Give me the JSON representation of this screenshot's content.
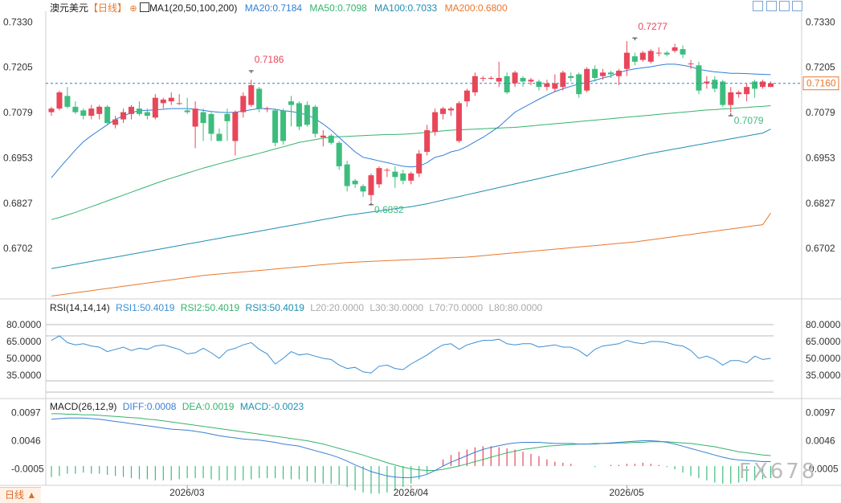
{
  "header": {
    "symbol": "澳元美元",
    "period": "【日线】",
    "period_icon": "circle-arrows-icon",
    "ma_label": "MA1(20,50,100,200)",
    "ma20": "MA20:0.7184",
    "ma50": "MA50:0.7098",
    "ma100": "MA100:0.7033",
    "ma200": "MA200:0.6800"
  },
  "rsi_header": {
    "label": "RSI(14,14,14)",
    "rsi1": "RSI1:50.4019",
    "rsi2": "RSI2:50.4019",
    "rsi3": "RSI3:50.4019",
    "l20": "L20:20.0000",
    "l30": "L30:30.0000",
    "l70": "L70:70.0000",
    "l80": "L80:80.0000"
  },
  "macd_header": {
    "label": "MACD(26,12,9)",
    "diff": "DIFF:0.0008",
    "dea": "DEA:0.0019",
    "macd": "MACD:-0.0023"
  },
  "bottom_tab": "日线 ▲",
  "watermark": "FX678",
  "colors": {
    "up": "#e8475a",
    "down": "#3dbd7d",
    "ma20": "#2f7fd8",
    "ma50": "#35b36b",
    "ma100": "#1f8fb0",
    "ma200": "#e8772e",
    "rsi": "#3a8fd4",
    "diff": "#3a7fd4",
    "dea": "#35b36b",
    "current": "#e8772e"
  },
  "chart_data": {
    "type": "candlestick",
    "dates_labels": [
      "2026/03",
      "2026/04",
      "2026/05"
    ],
    "price_axis": {
      "ticks": [
        "0.7330",
        "0.7205",
        "0.7079",
        "0.6953",
        "0.6827",
        "0.6702"
      ],
      "ylim": [
        0.6562,
        0.736
      ]
    },
    "current_price": "0.7160",
    "annotations": {
      "high1": "0.7186",
      "low1": "0.6832",
      "high2": "0.7277",
      "low2": "0.7079"
    },
    "candles": [
      [
        0.708,
        0.709,
        0.707,
        0.7095
      ],
      [
        0.709,
        0.7135,
        0.7085,
        0.714
      ],
      [
        0.7125,
        0.7095,
        0.709,
        0.715
      ],
      [
        0.7095,
        0.708,
        0.7075,
        0.711
      ],
      [
        0.7085,
        0.707,
        0.706,
        0.709
      ],
      [
        0.707,
        0.709,
        0.706,
        0.71
      ],
      [
        0.7075,
        0.7095,
        0.706,
        0.71
      ],
      [
        0.7095,
        0.705,
        0.7045,
        0.71
      ],
      [
        0.7045,
        0.706,
        0.7035,
        0.707
      ],
      [
        0.706,
        0.708,
        0.705,
        0.709
      ],
      [
        0.7075,
        0.7095,
        0.706,
        0.71
      ],
      [
        0.709,
        0.7075,
        0.707,
        0.711
      ],
      [
        0.708,
        0.707,
        0.706,
        0.709
      ],
      [
        0.7065,
        0.712,
        0.706,
        0.713
      ],
      [
        0.7105,
        0.7115,
        0.709,
        0.712
      ],
      [
        0.711,
        0.712,
        0.71,
        0.7135
      ],
      [
        0.7105,
        0.7105,
        0.71,
        0.713
      ],
      [
        0.7085,
        0.708,
        0.7075,
        0.712
      ],
      [
        0.704,
        0.709,
        0.698,
        0.711
      ],
      [
        0.708,
        0.705,
        0.7,
        0.709
      ],
      [
        0.7075,
        0.702,
        0.7,
        0.708
      ],
      [
        0.702,
        0.7,
        0.7,
        0.7035
      ],
      [
        0.7075,
        0.7055,
        0.7,
        0.709
      ],
      [
        0.7,
        0.708,
        0.696,
        0.7085
      ],
      [
        0.708,
        0.7125,
        0.7065,
        0.7135
      ],
      [
        0.71,
        0.7155,
        0.7095,
        0.717
      ],
      [
        0.7145,
        0.709,
        0.708,
        0.715
      ],
      [
        0.709,
        0.709,
        0.708,
        0.7095
      ],
      [
        0.7085,
        0.6995,
        0.6985,
        0.709
      ],
      [
        0.7085,
        0.7,
        0.699,
        0.709
      ],
      [
        0.711,
        0.71,
        0.704,
        0.7125
      ],
      [
        0.7105,
        0.704,
        0.703,
        0.711
      ],
      [
        0.71,
        0.7045,
        0.704,
        0.711
      ],
      [
        0.7095,
        0.702,
        0.701,
        0.71
      ],
      [
        0.701,
        0.7015,
        0.6985,
        0.703
      ],
      [
        0.7015,
        0.6995,
        0.699,
        0.702
      ],
      [
        0.6995,
        0.693,
        0.692,
        0.7
      ],
      [
        0.6935,
        0.6875,
        0.686,
        0.6945
      ],
      [
        0.689,
        0.688,
        0.687,
        0.6895
      ],
      [
        0.6875,
        0.686,
        0.6845,
        0.688
      ],
      [
        0.685,
        0.6905,
        0.6832,
        0.691
      ],
      [
        0.688,
        0.6925,
        0.687,
        0.693
      ],
      [
        0.692,
        0.692,
        0.69,
        0.6925
      ],
      [
        0.6915,
        0.69,
        0.687,
        0.693
      ],
      [
        0.691,
        0.689,
        0.688,
        0.692
      ],
      [
        0.689,
        0.691,
        0.688,
        0.6915
      ],
      [
        0.691,
        0.6965,
        0.69,
        0.6975
      ],
      [
        0.697,
        0.703,
        0.696,
        0.7045
      ],
      [
        0.7025,
        0.708,
        0.7015,
        0.709
      ],
      [
        0.7075,
        0.709,
        0.706,
        0.7095
      ],
      [
        0.7085,
        0.709,
        0.707,
        0.7095
      ],
      [
        0.7,
        0.7105,
        0.6995,
        0.711
      ],
      [
        0.711,
        0.714,
        0.7095,
        0.7145
      ],
      [
        0.7135,
        0.718,
        0.7125,
        0.719
      ],
      [
        0.7175,
        0.7175,
        0.7165,
        0.718
      ],
      [
        0.7175,
        0.7175,
        0.717,
        0.718
      ],
      [
        0.7165,
        0.7175,
        0.715,
        0.722
      ],
      [
        0.718,
        0.7135,
        0.713,
        0.719
      ],
      [
        0.716,
        0.719,
        0.715,
        0.7195
      ],
      [
        0.7175,
        0.7165,
        0.715,
        0.718
      ],
      [
        0.7165,
        0.717,
        0.7155,
        0.7175
      ],
      [
        0.7165,
        0.715,
        0.714,
        0.717
      ],
      [
        0.715,
        0.716,
        0.714,
        0.717
      ],
      [
        0.7145,
        0.716,
        0.7135,
        0.7185
      ],
      [
        0.715,
        0.719,
        0.714,
        0.7195
      ],
      [
        0.718,
        0.7175,
        0.7165,
        0.719
      ],
      [
        0.7185,
        0.713,
        0.712,
        0.719
      ],
      [
        0.714,
        0.72,
        0.7135,
        0.7205
      ],
      [
        0.72,
        0.7175,
        0.7165,
        0.721
      ],
      [
        0.718,
        0.719,
        0.717,
        0.72
      ],
      [
        0.719,
        0.7185,
        0.7175,
        0.7195
      ],
      [
        0.718,
        0.7195,
        0.7155,
        0.72
      ],
      [
        0.72,
        0.7245,
        0.718,
        0.7277
      ],
      [
        0.7235,
        0.722,
        0.721,
        0.7245
      ],
      [
        0.7225,
        0.7245,
        0.722,
        0.725
      ],
      [
        0.722,
        0.725,
        0.7215,
        0.7255
      ],
      [
        0.7245,
        0.7245,
        0.7235,
        0.726
      ],
      [
        0.7245,
        0.724,
        0.7235,
        0.725
      ],
      [
        0.725,
        0.726,
        0.7245,
        0.727
      ],
      [
        0.7255,
        0.724,
        0.723,
        0.7265
      ],
      [
        0.7215,
        0.7215,
        0.72,
        0.7225
      ],
      [
        0.721,
        0.714,
        0.713,
        0.722
      ],
      [
        0.716,
        0.7165,
        0.7145,
        0.718
      ],
      [
        0.717,
        0.7145,
        0.7135,
        0.718
      ],
      [
        0.7165,
        0.71,
        0.7095,
        0.717
      ],
      [
        0.71,
        0.7135,
        0.7079,
        0.715
      ],
      [
        0.713,
        0.7135,
        0.712,
        0.714
      ],
      [
        0.713,
        0.715,
        0.711,
        0.716
      ],
      [
        0.7165,
        0.7145,
        0.712,
        0.717
      ],
      [
        0.715,
        0.7165,
        0.7145,
        0.717
      ],
      [
        0.715,
        0.716,
        0.715,
        0.7165
      ]
    ],
    "ma20": [
      0.6898,
      0.6925,
      0.695,
      0.6975,
      0.6998,
      0.7015,
      0.703,
      0.7045,
      0.706,
      0.707,
      0.7078,
      0.7085,
      0.7085,
      0.7087,
      0.7088,
      0.709,
      0.709,
      0.709,
      0.7088,
      0.7085,
      0.7082,
      0.708,
      0.7079,
      0.708,
      0.7083,
      0.7087,
      0.709,
      0.709,
      0.7088,
      0.7084,
      0.7082,
      0.7078,
      0.7072,
      0.7062,
      0.7047,
      0.703,
      0.701,
      0.699,
      0.697,
      0.6955,
      0.695,
      0.6945,
      0.694,
      0.6935,
      0.693,
      0.6928,
      0.693,
      0.694,
      0.6955,
      0.696,
      0.697,
      0.6975,
      0.6985,
      0.6998,
      0.701,
      0.7025,
      0.704,
      0.706,
      0.708,
      0.7092,
      0.7104,
      0.7116,
      0.7127,
      0.7137,
      0.7145,
      0.7152,
      0.7158,
      0.7163,
      0.7168,
      0.7175,
      0.718,
      0.719,
      0.7196,
      0.72,
      0.7203,
      0.7206,
      0.721,
      0.7213,
      0.7213,
      0.721,
      0.7206,
      0.7199,
      0.7195,
      0.7192,
      0.719,
      0.7188,
      0.7188,
      0.7187,
      0.7186,
      0.7185,
      0.7184
    ],
    "ma50": [
      0.6782,
      0.6788,
      0.6795,
      0.6802,
      0.681,
      0.6818,
      0.6826,
      0.6834,
      0.6842,
      0.685,
      0.6858,
      0.6866,
      0.6874,
      0.6882,
      0.689,
      0.6897,
      0.6904,
      0.6911,
      0.6918,
      0.6925,
      0.6931,
      0.6937,
      0.6943,
      0.6949,
      0.6955,
      0.696,
      0.6966,
      0.6972,
      0.6978,
      0.6984,
      0.699,
      0.6996,
      0.7,
      0.7004,
      0.7008,
      0.701,
      0.7012,
      0.7013,
      0.7014,
      0.7015,
      0.7016,
      0.7017,
      0.7018,
      0.7018,
      0.7019,
      0.702,
      0.7022,
      0.7024,
      0.7026,
      0.7028,
      0.703,
      0.7031,
      0.7032,
      0.7033,
      0.7034,
      0.7035,
      0.7036,
      0.7037,
      0.7038,
      0.704,
      0.7042,
      0.7044,
      0.7046,
      0.7048,
      0.705,
      0.7052,
      0.7054,
      0.7056,
      0.7058,
      0.706,
      0.7062,
      0.7064,
      0.7066,
      0.7068,
      0.707,
      0.7072,
      0.7074,
      0.7076,
      0.7078,
      0.708,
      0.7082,
      0.7084,
      0.7086,
      0.7087,
      0.7089,
      0.709,
      0.7092,
      0.7093,
      0.7095,
      0.7096,
      0.7098
    ],
    "ma100": [
      0.6646,
      0.665,
      0.6654,
      0.6658,
      0.6662,
      0.6666,
      0.667,
      0.6674,
      0.6678,
      0.6682,
      0.6686,
      0.669,
      0.6694,
      0.6698,
      0.6702,
      0.6706,
      0.671,
      0.6714,
      0.6718,
      0.6722,
      0.6726,
      0.673,
      0.6734,
      0.6738,
      0.6742,
      0.6746,
      0.675,
      0.6754,
      0.6758,
      0.6762,
      0.6766,
      0.677,
      0.6774,
      0.6778,
      0.6782,
      0.6786,
      0.679,
      0.6794,
      0.6797,
      0.68,
      0.6803,
      0.6806,
      0.6809,
      0.6812,
      0.6815,
      0.6818,
      0.6822,
      0.6826,
      0.6831,
      0.6836,
      0.6841,
      0.6846,
      0.6851,
      0.6856,
      0.6861,
      0.6866,
      0.6871,
      0.6876,
      0.6881,
      0.6886,
      0.6891,
      0.6896,
      0.6901,
      0.6906,
      0.6911,
      0.6916,
      0.6921,
      0.6926,
      0.6931,
      0.6936,
      0.6941,
      0.6946,
      0.6951,
      0.6956,
      0.6961,
      0.6966,
      0.697,
      0.6974,
      0.6978,
      0.6982,
      0.6986,
      0.699,
      0.6994,
      0.6998,
      0.7002,
      0.7006,
      0.701,
      0.7014,
      0.7018,
      0.7022,
      0.7033
    ],
    "ma200": [
      0.657,
      0.6573,
      0.6576,
      0.6579,
      0.6582,
      0.6585,
      0.6588,
      0.6591,
      0.6594,
      0.6597,
      0.66,
      0.6603,
      0.6606,
      0.6609,
      0.6612,
      0.6615,
      0.6618,
      0.6621,
      0.6624,
      0.6627,
      0.6629,
      0.6631,
      0.6633,
      0.6635,
      0.6637,
      0.6639,
      0.6641,
      0.6643,
      0.6645,
      0.6647,
      0.6649,
      0.6651,
      0.6653,
      0.6655,
      0.6657,
      0.6659,
      0.6661,
      0.6663,
      0.6664,
      0.6665,
      0.6666,
      0.6667,
      0.6668,
      0.6669,
      0.667,
      0.6671,
      0.6672,
      0.6673,
      0.6674,
      0.6675,
      0.6676,
      0.6677,
      0.6678,
      0.668,
      0.6682,
      0.6684,
      0.6686,
      0.6688,
      0.669,
      0.6692,
      0.6694,
      0.6696,
      0.6698,
      0.67,
      0.6702,
      0.6704,
      0.6706,
      0.6708,
      0.671,
      0.6712,
      0.6714,
      0.6716,
      0.6718,
      0.672,
      0.6723,
      0.6726,
      0.6729,
      0.6732,
      0.6735,
      0.6738,
      0.6741,
      0.6744,
      0.6747,
      0.675,
      0.6753,
      0.6756,
      0.6759,
      0.6762,
      0.6765,
      0.6768,
      0.68
    ],
    "rsi": {
      "ylim": [
        20,
        90
      ],
      "ticks": [
        "80.0000",
        "65.0000",
        "50.0000",
        "35.0000"
      ],
      "levels": [
        20,
        30,
        70,
        80
      ],
      "values": [
        66,
        70,
        64,
        62,
        63,
        61,
        60,
        56,
        58,
        60,
        57,
        59,
        58,
        61,
        62,
        60,
        58,
        54,
        55,
        59,
        55,
        50,
        57,
        59,
        62,
        64,
        58,
        54,
        45,
        50,
        56,
        53,
        54,
        52,
        50,
        49,
        44,
        41,
        42,
        38,
        37,
        43,
        44,
        41,
        40,
        45,
        49,
        53,
        58,
        62,
        63,
        58,
        62,
        64,
        66,
        66,
        67,
        63,
        62,
        63,
        63,
        60,
        61,
        62,
        60,
        60,
        57,
        52,
        58,
        61,
        62,
        63,
        66,
        64,
        63,
        65,
        65,
        64,
        62,
        61,
        57,
        50,
        52,
        49,
        44,
        48,
        48,
        46,
        52,
        49,
        50
      ]
    },
    "macd": {
      "ylim": [
        -0.0035,
        0.0105
      ],
      "ticks": [
        "0.0097",
        "0.0046",
        "-0.0005"
      ],
      "diff": [
        0.0085,
        0.0086,
        0.0087,
        0.0087,
        0.0087,
        0.0086,
        0.0085,
        0.0083,
        0.0081,
        0.0079,
        0.0077,
        0.0075,
        0.0073,
        0.0071,
        0.0069,
        0.0067,
        0.0066,
        0.0065,
        0.0063,
        0.0061,
        0.0058,
        0.0055,
        0.0053,
        0.0051,
        0.0049,
        0.0048,
        0.0047,
        0.0045,
        0.0043,
        0.004,
        0.0038,
        0.0036,
        0.0032,
        0.0028,
        0.0024,
        0.002,
        0.0015,
        0.0009,
        0.0002,
        -0.0004,
        -0.001,
        -0.0014,
        -0.0018,
        -0.002,
        -0.0021,
        -0.0021,
        -0.0019,
        -0.0015,
        -0.0008,
        0.0,
        0.0007,
        0.0013,
        0.0019,
        0.0025,
        0.003,
        0.0034,
        0.0037,
        0.004,
        0.0042,
        0.0043,
        0.0043,
        0.0043,
        0.0042,
        0.0041,
        0.0041,
        0.0041,
        0.004,
        0.004,
        0.004,
        0.0041,
        0.0042,
        0.0043,
        0.0044,
        0.0045,
        0.0046,
        0.0046,
        0.0045,
        0.0043,
        0.004,
        0.0036,
        0.0032,
        0.0028,
        0.0024,
        0.002,
        0.0016,
        0.0013,
        0.0011,
        0.001,
        0.0009,
        0.0008,
        0.0008
      ],
      "dea": [
        0.0095,
        0.0095,
        0.0094,
        0.0094,
        0.0093,
        0.0093,
        0.0092,
        0.0091,
        0.009,
        0.0089,
        0.0088,
        0.0087,
        0.0085,
        0.0084,
        0.0082,
        0.008,
        0.0078,
        0.0076,
        0.0074,
        0.0072,
        0.007,
        0.0068,
        0.0066,
        0.0064,
        0.0062,
        0.006,
        0.0058,
        0.0056,
        0.0054,
        0.0052,
        0.005,
        0.0048,
        0.0046,
        0.0043,
        0.004,
        0.0036,
        0.0032,
        0.0028,
        0.0024,
        0.002,
        0.0015,
        0.0011,
        0.0006,
        0.0002,
        -0.0002,
        -0.0005,
        -0.0007,
        -0.0008,
        -0.0008,
        -0.0006,
        -0.0003,
        0.0,
        0.0004,
        0.0008,
        0.0012,
        0.0016,
        0.002,
        0.0024,
        0.0027,
        0.003,
        0.0032,
        0.0034,
        0.0036,
        0.0037,
        0.0038,
        0.0039,
        0.004,
        0.004,
        0.0041,
        0.0041,
        0.0041,
        0.0042,
        0.0042,
        0.0043,
        0.0043,
        0.0044,
        0.0044,
        0.0044,
        0.0043,
        0.0042,
        0.0041,
        0.0039,
        0.0037,
        0.0035,
        0.0032,
        0.0029,
        0.0026,
        0.0024,
        0.0022,
        0.002,
        0.0019
      ]
    }
  }
}
